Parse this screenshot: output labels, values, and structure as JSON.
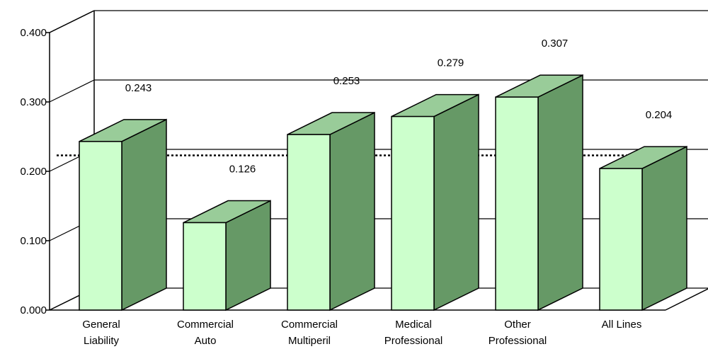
{
  "chart_data": {
    "type": "bar",
    "title": "",
    "xlabel": "",
    "ylabel": "",
    "ylim": [
      0,
      0.4
    ],
    "yticks": [
      "0.000",
      "0.100",
      "0.200",
      "0.300",
      "0.400"
    ],
    "ytick_values": [
      0,
      0.1,
      0.2,
      0.3,
      0.4
    ],
    "categories": [
      [
        "General",
        "Liability"
      ],
      [
        "Commercial",
        "Auto"
      ],
      [
        "Commercial",
        "Multiperil"
      ],
      [
        "Medical",
        "Professional"
      ],
      [
        "Other",
        "Professional"
      ],
      [
        "All Lines"
      ]
    ],
    "values": [
      0.243,
      0.126,
      0.253,
      0.279,
      0.307,
      0.204
    ],
    "value_labels": [
      "0.243",
      "0.126",
      "0.253",
      "0.279",
      "0.307",
      "0.204"
    ],
    "reference_line": {
      "style": "dotted",
      "value": 0.223
    },
    "grid": true,
    "legend": "none",
    "colors": {
      "bar_front": "#ccffcc",
      "bar_top": "#99cc99",
      "bar_side": "#669966",
      "outline": "#000000",
      "background": "#ffffff"
    }
  }
}
